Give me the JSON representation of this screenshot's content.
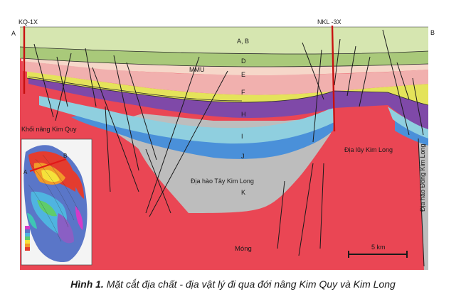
{
  "section": {
    "end_left": "A",
    "end_right": "B",
    "wells": [
      "KQ-1X",
      "NKL -3X"
    ],
    "horizons": [
      "A, B",
      "D",
      "MMU",
      "E",
      "F",
      "H",
      "I",
      "J",
      "K",
      "Móng"
    ],
    "structures": {
      "left_high": "Khối nâng Kim Quy",
      "right_high": "Địa lũy Kim Long",
      "graben_west": "Địa hào Tây Kim Long",
      "graben_east": "Địa hào Đông Kim Long"
    },
    "scale_bar": "5 km",
    "colors": {
      "ab": "#d6e6b0",
      "d": "#a9c97a",
      "e": "#f1b0ae",
      "f": "#e4e35a",
      "h": "#7f49a8",
      "i": "#8fcfdf",
      "j": "#4a90d9",
      "k": "#bdbdbd",
      "basement": "#ea4654",
      "well": "#c81010",
      "inset_line": "#e01818"
    }
  },
  "inset": {
    "point_a": "A",
    "point_b": "B"
  },
  "caption": {
    "figure_label": "Hình 1.",
    "text": " Mặt cắt địa chất - địa vật lý đi qua đới nâng Kim Quy và Kim Long"
  }
}
